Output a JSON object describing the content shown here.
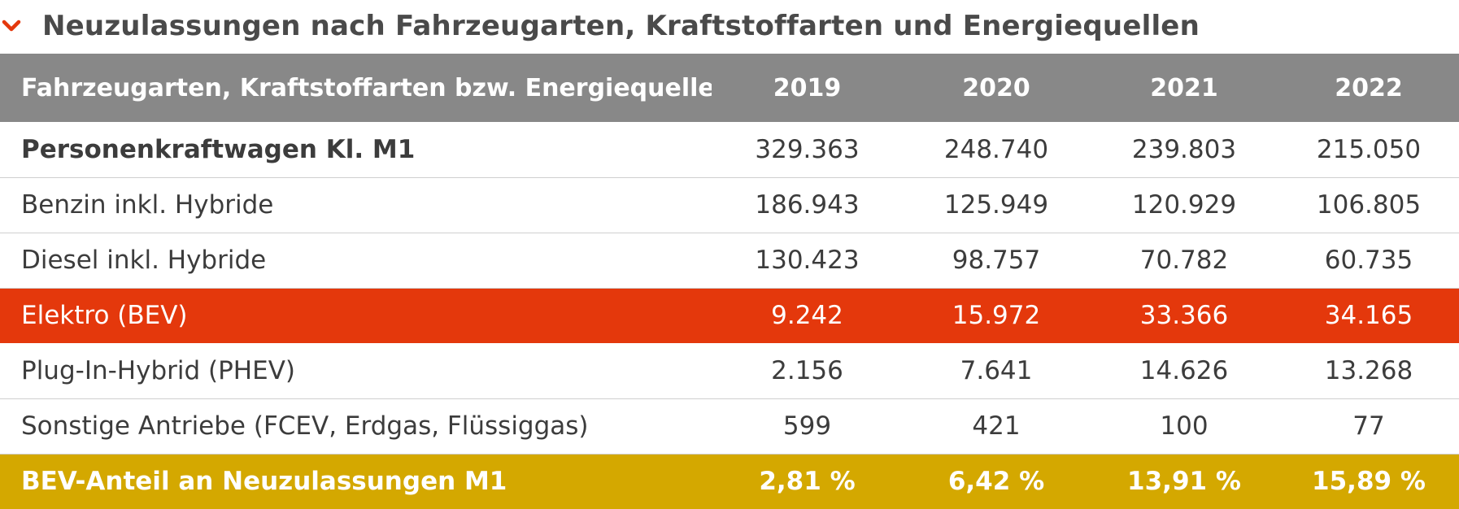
{
  "section": {
    "title": "Neuzulassungen nach Fahrzeugarten, Kraftstoffarten und Energiequellen",
    "chevron_icon": "chevron-down-icon",
    "chevron_color": "#e4380c"
  },
  "table": {
    "header": {
      "label": "Fahrzeugarten, Kraftstoffarten bzw. Energiequellen",
      "years": [
        "2019",
        "2020",
        "2021",
        "2022"
      ]
    },
    "rows": [
      {
        "label": "Personenkraftwagen Kl. M1",
        "values": [
          "329.363",
          "248.740",
          "239.803",
          "215.050"
        ]
      },
      {
        "label": "Benzin inkl. Hybride",
        "values": [
          "186.943",
          "125.949",
          "120.929",
          "106.805"
        ]
      },
      {
        "label": "Diesel inkl. Hybride",
        "values": [
          "130.423",
          "98.757",
          "70.782",
          "60.735"
        ]
      },
      {
        "label": "Elektro (BEV)",
        "values": [
          "9.242",
          "15.972",
          "33.366",
          "34.165"
        ]
      },
      {
        "label": "Plug-In-Hybrid (PHEV)",
        "values": [
          "2.156",
          "7.641",
          "14.626",
          "13.268"
        ]
      },
      {
        "label": "Sonstige Antriebe (FCEV, Erdgas, Flüssiggas)",
        "values": [
          "599",
          "421",
          "100",
          "77"
        ]
      },
      {
        "label": "BEV-Anteil an Neuzulassungen M1",
        "values": [
          "2,81 %",
          "6,42 %",
          "13,91 %",
          "15,89 %"
        ]
      }
    ],
    "colors": {
      "header_bg": "#888888",
      "highlight_bg": "#e4380c",
      "summary_bg": "#d4a800"
    }
  }
}
